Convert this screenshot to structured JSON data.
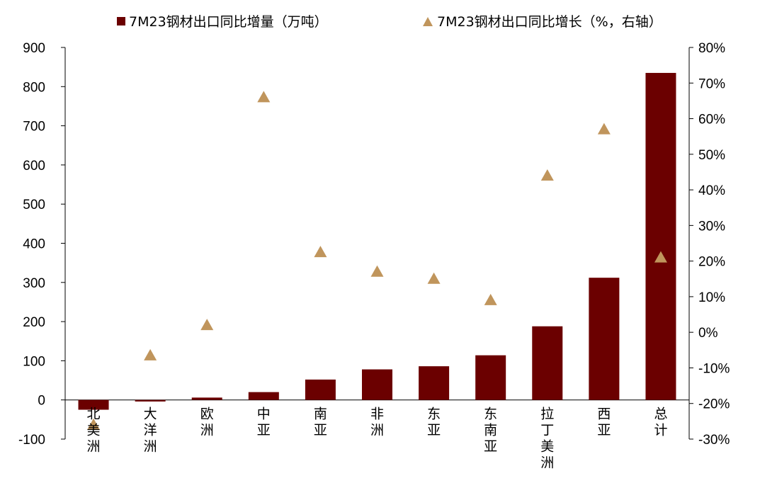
{
  "chart_data": {
    "type": "bar",
    "title": "",
    "categories": [
      [
        "北",
        "美",
        "洲"
      ],
      [
        "大",
        "洋",
        "洲"
      ],
      [
        "欧",
        "洲"
      ],
      [
        "中",
        "亚"
      ],
      [
        "南",
        "亚"
      ],
      [
        "非",
        "洲"
      ],
      [
        "东",
        "亚"
      ],
      [
        "东",
        "南",
        "亚"
      ],
      [
        "拉",
        "丁",
        "美",
        "洲"
      ],
      [
        "西",
        "亚"
      ],
      [
        "总",
        "计"
      ]
    ],
    "series": [
      {
        "name": "7M23钢材出口同比增量（万吨）",
        "type": "bar",
        "axis": "left",
        "color": "#6b0000",
        "values": [
          -25,
          -4,
          6,
          20,
          52,
          78,
          86,
          114,
          188,
          312,
          835
        ]
      },
      {
        "name": "7M23钢材出口同比增长（%，右轴）",
        "type": "scatter",
        "marker": "triangle",
        "axis": "right",
        "color": "#c0955c",
        "values": [
          -26,
          -6.5,
          2,
          66,
          22.5,
          17,
          15,
          9,
          44,
          57,
          21
        ]
      }
    ],
    "left_axis": {
      "ylim": [
        -100,
        900
      ],
      "ticks": [
        -100,
        0,
        100,
        200,
        300,
        400,
        500,
        600,
        700,
        800,
        900
      ],
      "labels": [
        "-100",
        "0",
        "100",
        "200",
        "300",
        "400",
        "500",
        "600",
        "700",
        "800",
        "900"
      ]
    },
    "right_axis": {
      "ylim": [
        -30,
        80
      ],
      "ticks": [
        -30,
        -20,
        -10,
        0,
        10,
        20,
        30,
        40,
        50,
        60,
        70,
        80
      ],
      "labels": [
        "-30%",
        "-20%",
        "-10%",
        "0%",
        "10%",
        "20%",
        "30%",
        "40%",
        "50%",
        "60%",
        "70%",
        "80%"
      ]
    },
    "legend_position": "top",
    "grid": false
  }
}
